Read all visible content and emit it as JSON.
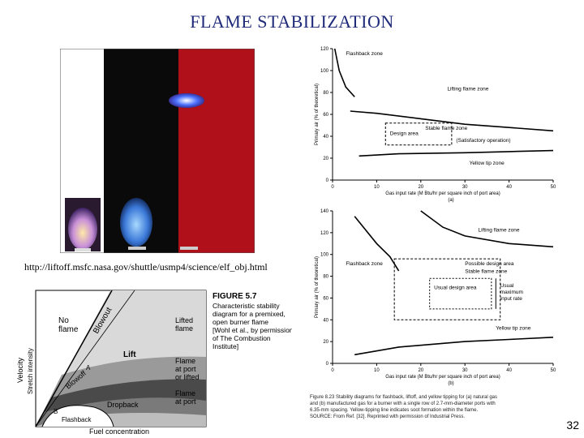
{
  "slide": {
    "title": "FLAME STABILIZATION",
    "url": "http://liftoff.msfc.nasa.gov/shuttle/usmp4/science/elf_obj.html",
    "slide_number": "32"
  },
  "photo": {
    "panel_colors": [
      "#ffffff",
      "#0a0a0a",
      "#b0101a"
    ]
  },
  "fig57": {
    "caption_heading": "FIGURE 5.7",
    "caption_lines": [
      "Characteristic stability",
      "diagram for a premixed,",
      "open burner flame",
      "[Wohl et al., by permission",
      "of The Combustion",
      "Institute]"
    ],
    "regions": {
      "no_flame": [
        "No",
        "flame"
      ],
      "lifted_flame": [
        "Lifted",
        "flame"
      ],
      "lift": "Lift",
      "flame_at_port_or_lifted": [
        "Flame",
        "at port",
        "or lifted"
      ],
      "dropback": "Dropback",
      "flame_at_port": [
        "Flame",
        "at port"
      ],
      "blowout": "Blowout",
      "blowoff": "Blowoff",
      "flashback": "Flashback",
      "point_a": "A",
      "point_b": "B"
    },
    "xlabel": "Fuel concentration",
    "ylabel_velocity": "Velocity",
    "ylabel_stretch": "Stretch intensity"
  },
  "chart_data": [
    {
      "type": "line",
      "id": "natural-gas",
      "ylabel": "Primary air (% of theoretical)",
      "xlabel": "Gas input rate (M Btu/hr per square inch of port area)",
      "panel_label": "(a)",
      "xlim": [
        0,
        50
      ],
      "ylim": [
        0,
        120
      ],
      "xticks": [
        "0",
        "10",
        "20",
        "30",
        "40",
        "50"
      ],
      "yticks": [
        "0",
        "20",
        "40",
        "60",
        "80",
        "100",
        "120"
      ],
      "series": [
        {
          "name": "Flashback zone",
          "x": [
            0.5,
            1.5,
            3,
            5
          ],
          "y": [
            120,
            100,
            85,
            76
          ]
        },
        {
          "name": "Lifting flame zone",
          "x": [
            4,
            10,
            20,
            30,
            40,
            50
          ],
          "y": [
            63,
            61,
            56,
            51,
            48,
            45
          ]
        },
        {
          "name": "Yellow tip zone",
          "x": [
            6,
            15,
            30,
            40,
            50
          ],
          "y": [
            22,
            24,
            25,
            26,
            27
          ]
        }
      ],
      "annotations": [
        "Flashback zone",
        "Lifting flame zone",
        "Stable flame zone",
        "Design area",
        "(Satisfactory operation)",
        "Yellow tip zone"
      ]
    },
    {
      "type": "line",
      "id": "manufactured-gas",
      "ylabel": "Primary air (% of theoretical)",
      "xlabel": "Gas input rate (M Btu/hr per square inch of port area)",
      "panel_label": "(b)",
      "xlim": [
        0,
        50
      ],
      "ylim": [
        0,
        140
      ],
      "xticks": [
        "0",
        "10",
        "20",
        "30",
        "40",
        "50"
      ],
      "yticks": [
        "0",
        "20",
        "40",
        "60",
        "80",
        "100",
        "120",
        "140"
      ],
      "series": [
        {
          "name": "Lifting flame zone",
          "x": [
            20,
            25,
            30,
            40,
            50
          ],
          "y": [
            140,
            125,
            117,
            110,
            107
          ]
        },
        {
          "name": "Flashback zone",
          "x": [
            5,
            10,
            13,
            15
          ],
          "y": [
            135,
            110,
            98,
            85
          ]
        },
        {
          "name": "Yellow tip zone",
          "x": [
            5,
            15,
            30,
            40,
            50
          ],
          "y": [
            8,
            15,
            20,
            22,
            24
          ]
        }
      ],
      "annotations": [
        "Lifting flame zone",
        "Flashback zone",
        "Possible design area",
        "Stable flame zone",
        "Usual design area",
        "Usual maximum input rate",
        "Yellow tip zone"
      ]
    }
  ],
  "fig823_caption": [
    "Figure 8.23  Stability diagrams for flashback, liftoff, and yellow tipping for (a) natural gas",
    "and (b) manufactured gas for a burner with a single row of 2.7-mm-diameter ports with",
    "6.35-mm spacing. Yellow-tipping line indicates soot formation within the flame.",
    "SOURCE: From Ref. [32]. Reprinted with permission of Industrial Press."
  ]
}
